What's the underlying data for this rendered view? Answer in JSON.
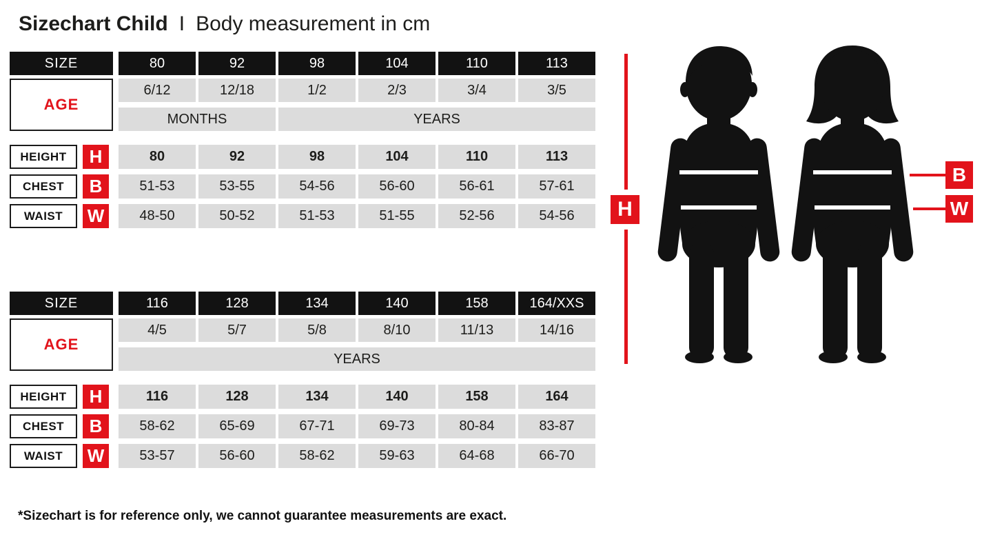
{
  "header": {
    "title_bold": "Sizechart Child",
    "separator": "I",
    "title_rest": "Body measurement in cm"
  },
  "labels": {
    "size": "SIZE",
    "age": "AGE",
    "height": "HEIGHT",
    "chest": "CHEST",
    "waist": "WAIST",
    "h": "H",
    "b": "B",
    "w": "W"
  },
  "colors": {
    "accent_red": "#e2131b",
    "header_black": "#121212",
    "cell_gray": "#dcdcdc"
  },
  "chart_data": {
    "type": "table",
    "title": "Sizechart Child - Body measurement in cm",
    "tables": [
      {
        "sizes": [
          "80",
          "92",
          "98",
          "104",
          "110",
          "113"
        ],
        "ages": [
          "6/12",
          "12/18",
          "1/2",
          "2/3",
          "3/4",
          "3/5"
        ],
        "age_units": [
          {
            "label": "MONTHS",
            "span": 2
          },
          {
            "label": "YEARS",
            "span": 4
          }
        ],
        "height": [
          "80",
          "92",
          "98",
          "104",
          "110",
          "113"
        ],
        "chest": [
          "51-53",
          "53-55",
          "54-56",
          "56-60",
          "56-61",
          "57-61"
        ],
        "waist": [
          "48-50",
          "50-52",
          "51-53",
          "51-55",
          "52-56",
          "54-56"
        ]
      },
      {
        "sizes": [
          "116",
          "128",
          "134",
          "140",
          "158",
          "164/XXS"
        ],
        "ages": [
          "4/5",
          "5/7",
          "5/8",
          "8/10",
          "11/13",
          "14/16"
        ],
        "age_units": [
          {
            "label": "YEARS",
            "span": 6
          }
        ],
        "height": [
          "116",
          "128",
          "134",
          "140",
          "158",
          "164"
        ],
        "chest": [
          "58-62",
          "65-69",
          "67-71",
          "69-73",
          "80-84",
          "83-87"
        ],
        "waist": [
          "53-57",
          "56-60",
          "58-62",
          "59-63",
          "64-68",
          "66-70"
        ]
      }
    ]
  },
  "footnote": "*Sizechart is for reference only, we cannot guarantee measurements are exact."
}
